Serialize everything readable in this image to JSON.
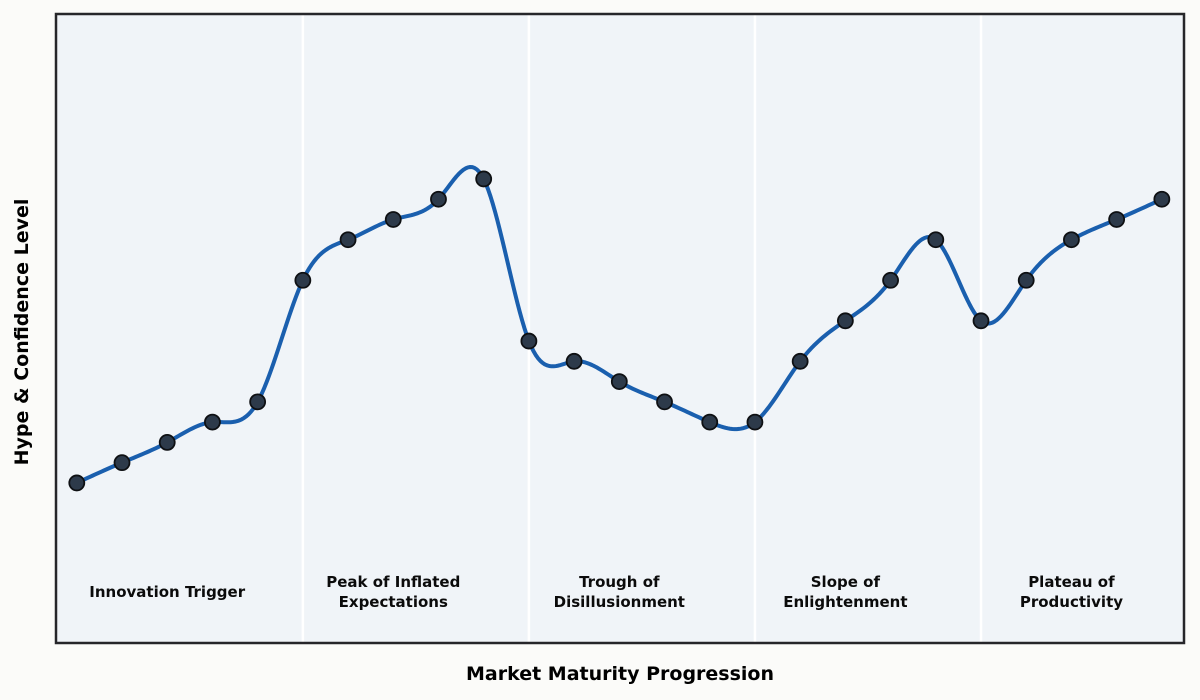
{
  "chart_data": {
    "type": "line",
    "title": "",
    "xlabel": "Market Maturity Progression",
    "ylabel": "Hype & Confidence Level",
    "x": [
      0,
      1,
      2,
      3,
      4,
      5,
      6,
      7,
      8,
      9,
      10,
      11,
      12,
      13,
      14,
      15,
      16,
      17,
      18,
      19,
      20,
      21,
      22,
      23,
      24
    ],
    "values": [
      10,
      15,
      20,
      25,
      30,
      60,
      70,
      75,
      80,
      85,
      45,
      40,
      35,
      30,
      25,
      25,
      40,
      50,
      60,
      70,
      50,
      60,
      70,
      75,
      80
    ],
    "xlim": [
      -0.46,
      24.49
    ],
    "ylim": [
      -29.5,
      125.7
    ],
    "grid": false,
    "legend": null,
    "curve_style": "smooth-spline",
    "phase_dividers_x": [
      5,
      10,
      15,
      20
    ],
    "phase_label_y": -17,
    "phases": [
      {
        "label": "Innovation Trigger",
        "center_x": 2
      },
      {
        "label": "Peak of Inflated\nExpectations",
        "center_x": 7
      },
      {
        "label": "Trough of\nDisillusionment",
        "center_x": 12
      },
      {
        "label": "Slope of\nEnlightenment",
        "center_x": 17
      },
      {
        "label": "Plateau of\nProductivity",
        "center_x": 22
      }
    ],
    "colors": {
      "line": "#1a5fae",
      "marker_fill": "#2d3a4a",
      "marker_edge": "#0e1013",
      "axes_background": "#f0f4f8",
      "figure_background": "#fbfbf9",
      "divider": "#ffffff",
      "border": "#26262a",
      "text": "#000000"
    }
  }
}
